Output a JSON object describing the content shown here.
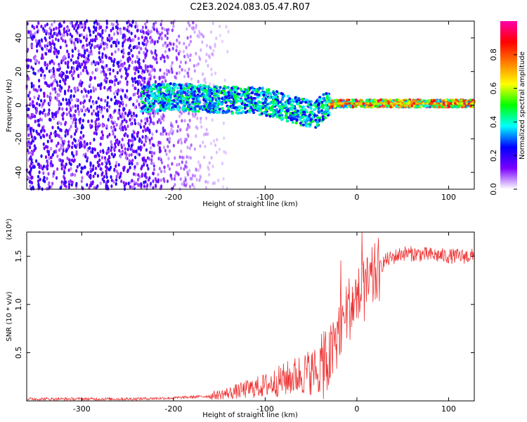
{
  "title": "C2E3.2024.083.05.47.R07",
  "chart_data": [
    {
      "type": "heatmap",
      "xlabel": "Height of straight line (km)",
      "ylabel": "Frequency (Hz)",
      "xlim": [
        -360,
        128
      ],
      "ylim": [
        -50,
        50
      ],
      "xticks": [
        -300,
        -200,
        -100,
        0,
        100
      ],
      "yticks": [
        -40,
        -20,
        0,
        20,
        40
      ],
      "colorbar": {
        "label": "Normalized spectral amplitude",
        "range": [
          0,
          1
        ],
        "ticks": [
          0.0,
          0.2,
          0.4,
          0.6,
          0.8
        ],
        "tick_labels": [
          "0.0",
          "0.2",
          "0.4",
          "0.6",
          "0.8"
        ],
        "colors": [
          "#ffffff",
          "#7a00ff",
          "#0000ff",
          "#00ffff",
          "#00ff00",
          "#ffff00",
          "#ff8000",
          "#ff0000",
          "#ff00aa"
        ]
      },
      "signal_track": [
        {
          "x": -230,
          "y": 4
        },
        {
          "x": -200,
          "y": 5
        },
        {
          "x": -170,
          "y": 4
        },
        {
          "x": -140,
          "y": 3
        },
        {
          "x": -120,
          "y": 3
        },
        {
          "x": -100,
          "y": 2
        },
        {
          "x": -80,
          "y": -1
        },
        {
          "x": -60,
          "y": -4
        },
        {
          "x": -45,
          "y": -6
        },
        {
          "x": -35,
          "y": 0
        },
        {
          "x": -20,
          "y": 1
        },
        {
          "x": 0,
          "y": 1
        },
        {
          "x": 40,
          "y": 1
        },
        {
          "x": 80,
          "y": 1
        },
        {
          "x": 125,
          "y": 1
        }
      ]
    },
    {
      "type": "line",
      "xlabel": "Height of straight line (km)",
      "ylabel": "SNR (10 * v/v)",
      "y_multiplier_label": "(x10⁴)",
      "xlim": [
        -360,
        128
      ],
      "ylim": [
        0,
        1.75
      ],
      "xticks": [
        -300,
        -200,
        -100,
        0,
        100
      ],
      "yticks": [
        0.5,
        1.0,
        1.5
      ],
      "ytick_labels": [
        "0.5",
        "1.0",
        "1.5"
      ],
      "color": "#ee3333",
      "series": [
        {
          "x": [
            -360,
            -300,
            -250,
            -200,
            -160,
            -140,
            -120,
            -100,
            -80,
            -60,
            -40,
            -30,
            -25,
            -20,
            -10,
            0,
            10,
            20,
            30,
            50,
            70,
            100,
            128
          ],
          "y": [
            0.02,
            0.02,
            0.02,
            0.03,
            0.05,
            0.08,
            0.12,
            0.16,
            0.22,
            0.28,
            0.33,
            0.42,
            0.55,
            0.75,
            0.95,
            1.05,
            1.15,
            1.3,
            1.45,
            1.53,
            1.52,
            1.5,
            1.5
          ]
        }
      ]
    }
  ]
}
